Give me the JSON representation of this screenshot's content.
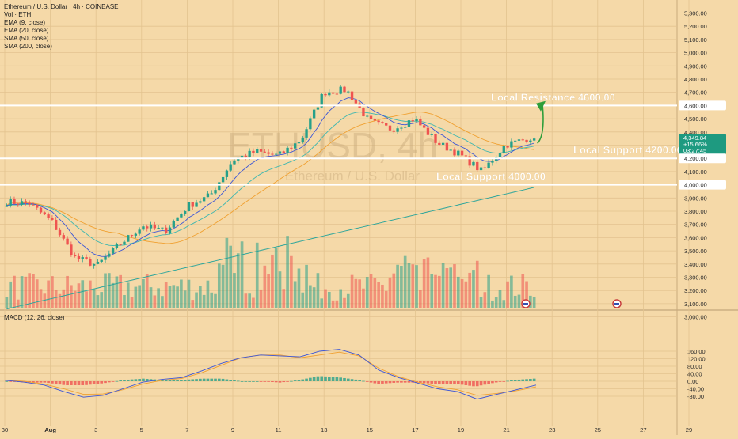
{
  "header": {
    "symbol_line": "Ethereum / U.S. Dollar · 4h · COINBASE",
    "indicators": [
      "Vol · ETH",
      "EMA (9, close)",
      "EMA (20, close)",
      "SMA (50, close)",
      "SMA (200, close)"
    ]
  },
  "macd_label": "MACD (12, 26, close)",
  "watermark": {
    "symbol": "ETHUSD, 4h",
    "name": "Ethereum / U.S. Dollar"
  },
  "price_badge": {
    "price": "4,349.84",
    "change": "+15.66%",
    "timer": "03:27:45",
    "color": "#1e9a80"
  },
  "colors": {
    "background": "#f5d9a8",
    "bull": "#26a08a",
    "bear": "#ef5350",
    "ema9": "#3b55d6",
    "ema20": "#3eb7b0",
    "sma50": "#f0a030",
    "sma200": "#2ba59b",
    "arrow": "#2e9e3a"
  },
  "chart_data": [
    {
      "type": "candlestick",
      "title": "Ethereum / U.S. Dollar · 4h · COINBASE",
      "x_tick_labels": [
        "30",
        "Aug",
        "3",
        "5",
        "7",
        "9",
        "11",
        "13",
        "15",
        "17",
        "19",
        "21",
        "23",
        "25",
        "27",
        "29"
      ],
      "y_tick_labels": [
        "5,300.00",
        "5,200.00",
        "5,100.00",
        "5,000.00",
        "4,900.00",
        "4,800.00",
        "4,700.00",
        "4,600.00",
        "4,500.00",
        "4,400.00",
        "4,300.00",
        "4,200.00",
        "4,100.00",
        "4,000.00",
        "3,900.00",
        "3,800.00",
        "3,700.00",
        "3,600.00",
        "3,500.00",
        "3,400.00",
        "3,300.00",
        "3,200.00",
        "3,100.00",
        "3,000.00"
      ],
      "ylim": [
        2960,
        5340
      ],
      "key_points": [
        {
          "label": "Jul 30",
          "price": 3870
        },
        {
          "label": "Jul 31",
          "price": 3860
        },
        {
          "label": "Aug 1",
          "price": 3720
        },
        {
          "label": "Aug 2",
          "price": 3450
        },
        {
          "label": "Aug 3",
          "price": 3390
        },
        {
          "label": "Aug 4",
          "price": 3550
        },
        {
          "label": "Aug 5",
          "price": 3690
        },
        {
          "label": "Aug 6",
          "price": 3650
        },
        {
          "label": "Aug 7",
          "price": 3840
        },
        {
          "label": "Aug 8",
          "price": 3920
        },
        {
          "label": "Aug 9",
          "price": 4190
        },
        {
          "label": "Aug 10",
          "price": 4250
        },
        {
          "label": "Aug 11",
          "price": 4220
        },
        {
          "label": "Aug 12",
          "price": 4340
        },
        {
          "label": "Aug 13",
          "price": 4700
        },
        {
          "label": "Aug 14",
          "price": 4720
        },
        {
          "label": "Aug 15",
          "price": 4480
        },
        {
          "label": "Aug 16",
          "price": 4420
        },
        {
          "label": "Aug 17",
          "price": 4500
        },
        {
          "label": "Aug 18",
          "price": 4320
        },
        {
          "label": "Aug 19",
          "price": 4230
        },
        {
          "label": "Aug 20",
          "price": 4100
        },
        {
          "label": "Aug 21",
          "price": 4300
        },
        {
          "label": "Aug 22",
          "price": 4349.84
        }
      ],
      "levels": [
        {
          "label": "Local Resistance 4600.00",
          "price": 4600
        },
        {
          "label": "Local Support 4200.00",
          "price": 4200
        },
        {
          "label": "Local Support 4000.00",
          "price": 4000
        }
      ],
      "last_price": 4349.84
    },
    {
      "type": "macd",
      "title": "MACD (12, 26, close)",
      "y_tick_labels": [
        "160.00",
        "120.00",
        "80.00",
        "40.00",
        "0.00",
        "-40.00",
        "-80.00"
      ],
      "ylim": [
        -100,
        175
      ],
      "macd_line": [
        5,
        -5,
        -20,
        -55,
        -85,
        -75,
        -40,
        -5,
        10,
        20,
        55,
        95,
        125,
        140,
        135,
        130,
        160,
        170,
        140,
        60,
        20,
        -10,
        -40,
        -55,
        -95,
        -70,
        -45,
        -20
      ],
      "signal_line": [
        5,
        0,
        -15,
        -40,
        -70,
        -68,
        -45,
        -15,
        5,
        15,
        45,
        85,
        125,
        140,
        140,
        125,
        140,
        155,
        135,
        70,
        25,
        -5,
        -30,
        -45,
        -75,
        -65,
        -50,
        -30
      ]
    }
  ]
}
